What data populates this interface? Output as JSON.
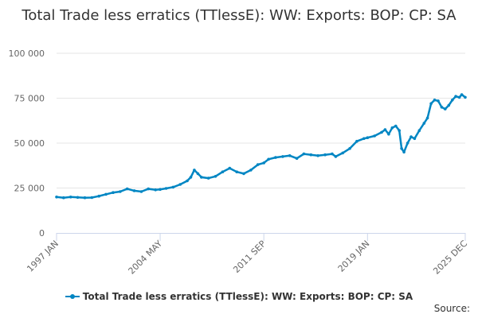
{
  "chart_data": {
    "type": "line",
    "title": "Total Trade less erratics (TTlessE): WW: Exports: BOP: CP: SA",
    "xlabel": "",
    "ylabel": "",
    "ylim": [
      0,
      100000
    ],
    "yticks": [
      0,
      25000,
      50000,
      75000,
      100000
    ],
    "ytick_labels": [
      "0",
      "25 000",
      "50 000",
      "75 000",
      "100 000"
    ],
    "xtick_labels": [
      "1997 JAN",
      "2004 MAY",
      "2011 SEP",
      "2019 JAN",
      "2025 DEC"
    ],
    "xtick_dates": [
      "1997-01",
      "2004-05",
      "2011-09",
      "2019-01",
      "2025-12"
    ],
    "grid": true,
    "legend_position": "bottom",
    "series": [
      {
        "name": "Total Trade less erratics (TTlessE): WW: Exports: BOP: CP: SA",
        "color": "#0086c3",
        "points": [
          [
            "1997-01",
            20000
          ],
          [
            "1997-07",
            19600
          ],
          [
            "1998-01",
            20000
          ],
          [
            "1998-07",
            19800
          ],
          [
            "1999-01",
            19600
          ],
          [
            "1999-07",
            19700
          ],
          [
            "2000-01",
            20500
          ],
          [
            "2000-07",
            21500
          ],
          [
            "2001-01",
            22500
          ],
          [
            "2001-07",
            23000
          ],
          [
            "2002-01",
            24500
          ],
          [
            "2002-07",
            23500
          ],
          [
            "2003-01",
            23000
          ],
          [
            "2003-07",
            24500
          ],
          [
            "2004-01",
            24000
          ],
          [
            "2004-05",
            24200
          ],
          [
            "2004-10",
            24800
          ],
          [
            "2005-04",
            25500
          ],
          [
            "2005-10",
            27000
          ],
          [
            "2006-04",
            29000
          ],
          [
            "2006-07",
            31000
          ],
          [
            "2006-10",
            35000
          ],
          [
            "2007-01",
            33000
          ],
          [
            "2007-04",
            31000
          ],
          [
            "2007-10",
            30500
          ],
          [
            "2008-04",
            31500
          ],
          [
            "2008-10",
            34000
          ],
          [
            "2009-04",
            36000
          ],
          [
            "2009-10",
            34000
          ],
          [
            "2010-04",
            33000
          ],
          [
            "2010-10",
            35000
          ],
          [
            "2011-04",
            38000
          ],
          [
            "2011-09",
            39000
          ],
          [
            "2012-01",
            41000
          ],
          [
            "2012-07",
            42000
          ],
          [
            "2013-01",
            42500
          ],
          [
            "2013-07",
            43000
          ],
          [
            "2014-01",
            41500
          ],
          [
            "2014-07",
            44000
          ],
          [
            "2015-01",
            43500
          ],
          [
            "2015-07",
            43000
          ],
          [
            "2016-01",
            43500
          ],
          [
            "2016-07",
            44000
          ],
          [
            "2016-10",
            42500
          ],
          [
            "2017-04",
            44500
          ],
          [
            "2017-10",
            47000
          ],
          [
            "2018-04",
            51000
          ],
          [
            "2018-10",
            52500
          ],
          [
            "2019-01",
            53000
          ],
          [
            "2019-07",
            54000
          ],
          [
            "2020-01",
            56000
          ],
          [
            "2020-04",
            57500
          ],
          [
            "2020-07",
            55000
          ],
          [
            "2020-10",
            58500
          ],
          [
            "2021-01",
            59500
          ],
          [
            "2021-04",
            57000
          ],
          [
            "2021-06",
            47000
          ],
          [
            "2021-08",
            45000
          ],
          [
            "2021-11",
            50000
          ],
          [
            "2022-02",
            53500
          ],
          [
            "2022-05",
            52500
          ],
          [
            "2022-09",
            57000
          ],
          [
            "2023-01",
            61000
          ],
          [
            "2023-04",
            64000
          ],
          [
            "2023-07",
            72000
          ],
          [
            "2023-10",
            74000
          ],
          [
            "2024-01",
            73500
          ],
          [
            "2024-04",
            70000
          ],
          [
            "2024-07",
            69000
          ],
          [
            "2024-10",
            71000
          ],
          [
            "2025-01",
            74000
          ],
          [
            "2025-04",
            76000
          ],
          [
            "2025-07",
            75500
          ],
          [
            "2025-09",
            77000
          ],
          [
            "2025-12",
            75500
          ]
        ]
      }
    ]
  },
  "credits": "Source:"
}
